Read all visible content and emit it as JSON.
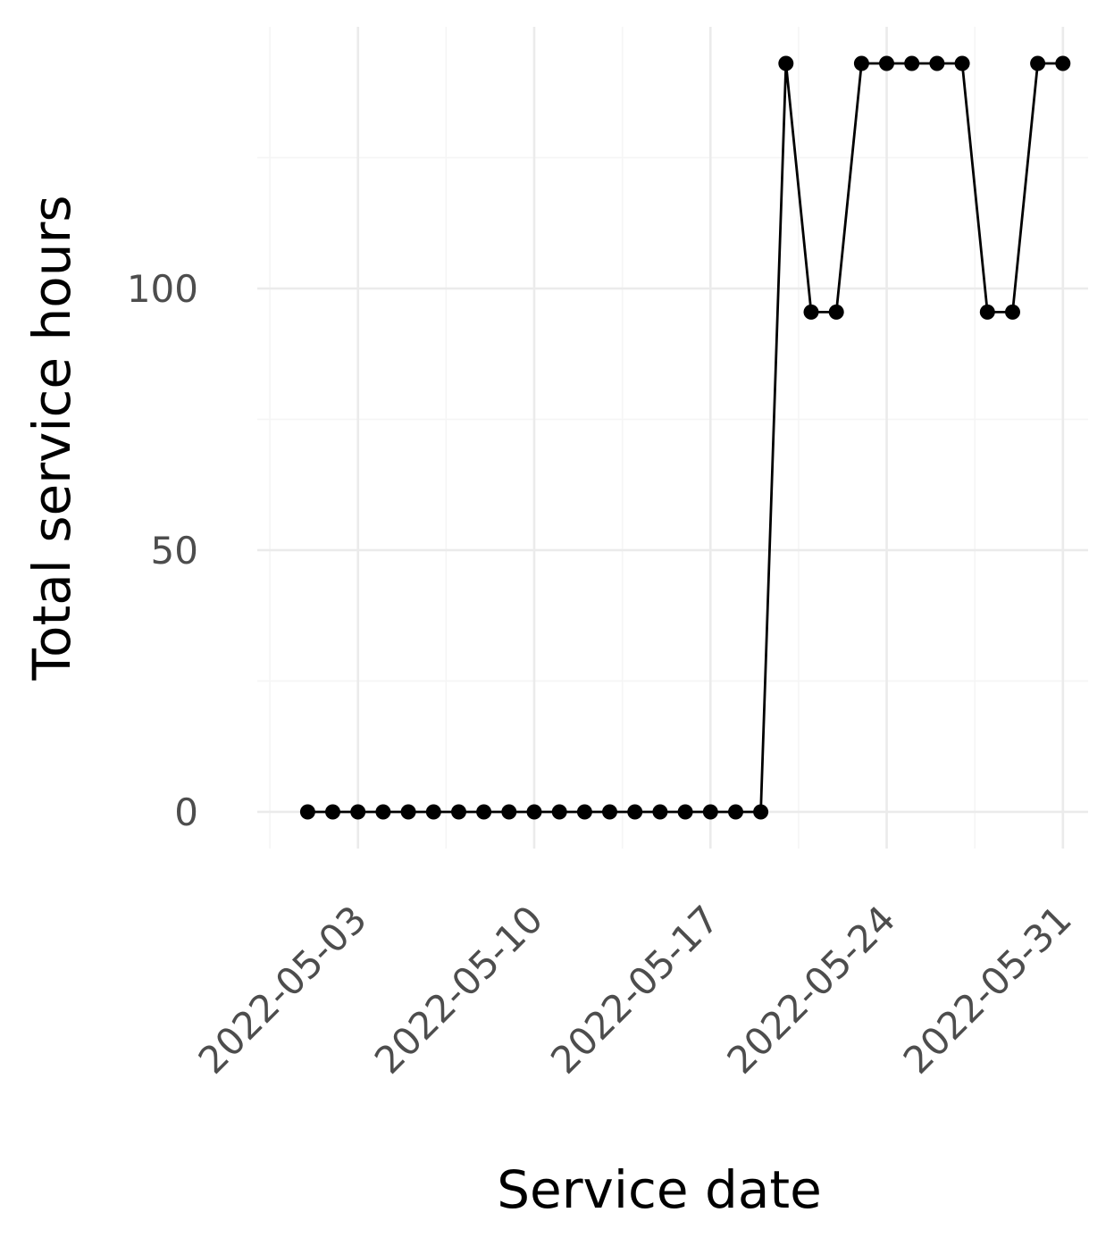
{
  "chart_data": {
    "type": "line",
    "xlabel": "Service date",
    "ylabel": "Total service hours",
    "x_axis": {
      "type": "date",
      "range": [
        "2022-04-29",
        "2022-06-01"
      ],
      "major_ticks": [
        "2022-05-03",
        "2022-05-10",
        "2022-05-17",
        "2022-05-24",
        "2022-05-31"
      ],
      "tick_label_rotation": "45 degrees"
    },
    "y_axis": {
      "range": [
        -7,
        150
      ],
      "major_ticks": [
        0,
        50,
        100
      ],
      "minor_ticks": [
        25,
        75,
        125
      ]
    },
    "grid": true,
    "legend": "none",
    "series": [
      {
        "color": "#000000",
        "markers": true,
        "points": [
          {
            "x": "2022-05-01",
            "y": 0
          },
          {
            "x": "2022-05-02",
            "y": 0
          },
          {
            "x": "2022-05-03",
            "y": 0
          },
          {
            "x": "2022-05-04",
            "y": 0
          },
          {
            "x": "2022-05-05",
            "y": 0
          },
          {
            "x": "2022-05-06",
            "y": 0
          },
          {
            "x": "2022-05-07",
            "y": 0
          },
          {
            "x": "2022-05-08",
            "y": 0
          },
          {
            "x": "2022-05-09",
            "y": 0
          },
          {
            "x": "2022-05-10",
            "y": 0
          },
          {
            "x": "2022-05-11",
            "y": 0
          },
          {
            "x": "2022-05-12",
            "y": 0
          },
          {
            "x": "2022-05-13",
            "y": 0
          },
          {
            "x": "2022-05-14",
            "y": 0
          },
          {
            "x": "2022-05-15",
            "y": 0
          },
          {
            "x": "2022-05-16",
            "y": 0
          },
          {
            "x": "2022-05-17",
            "y": 0
          },
          {
            "x": "2022-05-18",
            "y": 0
          },
          {
            "x": "2022-05-19",
            "y": 0
          },
          {
            "x": "2022-05-20",
            "y": 143
          },
          {
            "x": "2022-05-21",
            "y": 95.5
          },
          {
            "x": "2022-05-22",
            "y": 95.5
          },
          {
            "x": "2022-05-23",
            "y": 143
          },
          {
            "x": "2022-05-24",
            "y": 143
          },
          {
            "x": "2022-05-25",
            "y": 143
          },
          {
            "x": "2022-05-26",
            "y": 143
          },
          {
            "x": "2022-05-27",
            "y": 143
          },
          {
            "x": "2022-05-28",
            "y": 95.5
          },
          {
            "x": "2022-05-29",
            "y": 95.5
          },
          {
            "x": "2022-05-30",
            "y": 143
          },
          {
            "x": "2022-05-31",
            "y": 143
          }
        ]
      }
    ]
  }
}
